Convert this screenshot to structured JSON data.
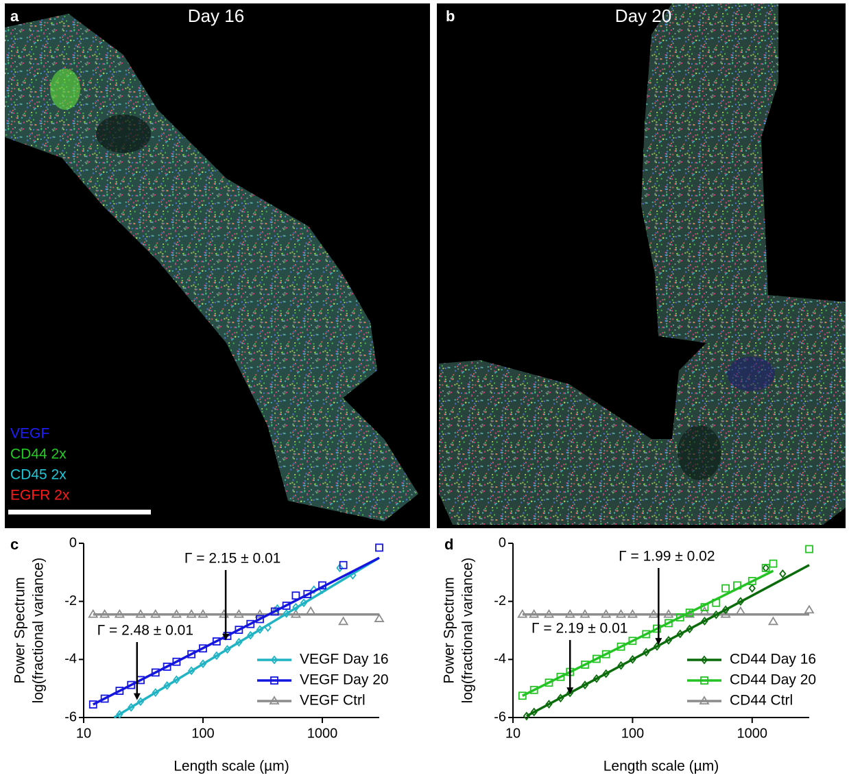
{
  "images": [
    {
      "label": "a",
      "title": "Day 16",
      "channels": [
        {
          "name": "VEGF",
          "color": "#1e1eff"
        },
        {
          "name": "CD44 2x",
          "color": "#22cc22"
        },
        {
          "name": "CD45 2x",
          "color": "#1fc8d8"
        },
        {
          "name": "EGFR 2x",
          "color": "#ff1a1a"
        }
      ]
    },
    {
      "label": "b",
      "title": "Day 20"
    }
  ],
  "chart_data": [
    {
      "type": "scatter",
      "panel_label": "c",
      "xlabel": "Length scale (µm)",
      "ylabel": [
        "Power Spectrum",
        "log(fractional variance)"
      ],
      "xscale": "log",
      "xlim": [
        10,
        3000
      ],
      "ylim": [
        -6,
        0
      ],
      "xticks": [
        10,
        100,
        1000
      ],
      "yticks": [
        -6,
        -4,
        -2,
        0
      ],
      "legend": "lower right",
      "series": [
        {
          "name": "VEGF Ctrl",
          "color": "#8c8c8c",
          "marker": "triangle",
          "x": [
            12,
            15,
            20,
            30,
            40,
            60,
            80,
            100,
            150,
            200,
            300,
            400,
            600,
            800,
            1500,
            3000
          ],
          "values": [
            -2.45,
            -2.45,
            -2.45,
            -2.45,
            -2.45,
            -2.45,
            -2.45,
            -2.45,
            -2.45,
            -2.45,
            -2.45,
            -2.35,
            -2.45,
            -2.35,
            -2.7,
            -2.6
          ],
          "fit": {
            "x": [
              12,
              3000
            ],
            "values": [
              -2.45,
              -2.45
            ]
          }
        },
        {
          "name": "VEGF Day 16",
          "color": "#1fb3c4",
          "marker": "diamond",
          "x": [
            20,
            25,
            30,
            40,
            50,
            60,
            80,
            100,
            130,
            160,
            200,
            250,
            300,
            350,
            420,
            500,
            600,
            700,
            850,
            1000,
            1400,
            1800
          ],
          "values": [
            -5.89,
            -5.65,
            -5.45,
            -5.14,
            -4.9,
            -4.7,
            -4.39,
            -4.15,
            -3.87,
            -3.65,
            -3.41,
            -3.17,
            -2.97,
            -2.9,
            -2.25,
            -2.42,
            -2.2,
            -2.05,
            -1.6,
            -1.6,
            -0.85,
            -1.1
          ],
          "fit": {
            "x": [
              18,
              3000
            ],
            "values": [
              -6,
              -0.5
            ]
          }
        },
        {
          "name": "VEGF Day 20",
          "color": "#1515e0",
          "marker": "square",
          "x": [
            12,
            15,
            20,
            25,
            30,
            40,
            50,
            60,
            80,
            100,
            130,
            160,
            200,
            250,
            300,
            400,
            500,
            600,
            750,
            1000,
            1500,
            3000
          ],
          "values": [
            -5.55,
            -5.35,
            -5.08,
            -4.88,
            -4.71,
            -4.45,
            -4.25,
            -4.08,
            -3.82,
            -3.62,
            -3.38,
            -3.19,
            -2.98,
            -2.78,
            -2.61,
            -2.35,
            -2.15,
            -1.8,
            -1.75,
            -1.45,
            -0.75,
            -0.15
          ],
          "fit": {
            "x": [
              12,
              3000
            ],
            "values": [
              -5.55,
              -0.5
            ]
          }
        }
      ],
      "annotations": [
        {
          "text": "Γ = 2.15 ± 0.01",
          "x": 155,
          "y": -3.35
        },
        {
          "text": "Γ = 2.48 ± 0.01",
          "x": 28,
          "y": -5.4
        }
      ]
    },
    {
      "type": "scatter",
      "panel_label": "d",
      "xlabel": "Length scale (µm)",
      "ylabel": [
        "Power Spectrum",
        "log(fractional variance)"
      ],
      "xscale": "log",
      "xlim": [
        10,
        3000
      ],
      "ylim": [
        -6,
        0
      ],
      "xticks": [
        10,
        100,
        1000
      ],
      "yticks": [
        -6,
        -4,
        -2,
        0
      ],
      "legend": "lower right",
      "series": [
        {
          "name": "CD44 Ctrl",
          "color": "#8c8c8c",
          "marker": "triangle",
          "x": [
            12,
            15,
            20,
            30,
            40,
            60,
            80,
            100,
            150,
            200,
            300,
            400,
            600,
            800,
            1500,
            3000
          ],
          "values": [
            -2.45,
            -2.45,
            -2.45,
            -2.45,
            -2.45,
            -2.45,
            -2.45,
            -2.45,
            -2.45,
            -2.45,
            -2.45,
            -2.35,
            -2.45,
            -2.35,
            -2.7,
            -2.3
          ],
          "fit": {
            "x": [
              12,
              3000
            ],
            "values": [
              -2.45,
              -2.45
            ]
          }
        },
        {
          "name": "CD44 Day 16",
          "color": "#0a6b0a",
          "marker": "diamond",
          "x": [
            13,
            15,
            20,
            25,
            30,
            40,
            50,
            60,
            80,
            100,
            130,
            160,
            200,
            250,
            300,
            400,
            500,
            600,
            800,
            1000,
            1300,
            1800
          ],
          "values": [
            -5.95,
            -5.81,
            -5.54,
            -5.33,
            -5.15,
            -4.88,
            -4.66,
            -4.49,
            -4.21,
            -4.0,
            -3.75,
            -3.55,
            -3.34,
            -3.12,
            -2.95,
            -2.68,
            -2.46,
            -2.29,
            -2.0,
            -1.55,
            -0.85,
            -1.05
          ],
          "fit": {
            "x": [
              13,
              3000
            ],
            "values": [
              -5.95,
              -0.75
            ]
          }
        },
        {
          "name": "CD44 Day 20",
          "color": "#22c322",
          "marker": "square",
          "x": [
            12,
            15,
            20,
            25,
            30,
            40,
            50,
            60,
            80,
            100,
            130,
            160,
            200,
            250,
            300,
            400,
            500,
            600,
            750,
            1000,
            1300,
            1500,
            3000
          ],
          "values": [
            -5.25,
            -5.05,
            -4.8,
            -4.6,
            -4.43,
            -4.18,
            -3.98,
            -3.82,
            -3.56,
            -3.36,
            -3.13,
            -2.94,
            -2.75,
            -2.55,
            -2.39,
            -2.2,
            -2.05,
            -1.55,
            -1.45,
            -1.3,
            -0.85,
            -0.7,
            -0.2
          ],
          "fit": {
            "x": [
              12,
              1500
            ],
            "values": [
              -5.25,
              -0.95
            ]
          }
        }
      ],
      "annotations": [
        {
          "text": "Γ = 1.99 ± 0.02",
          "x": 165,
          "y": -3.5
        },
        {
          "text": "Γ = 2.19 ± 0.01",
          "x": 30,
          "y": -5.2
        }
      ]
    }
  ]
}
